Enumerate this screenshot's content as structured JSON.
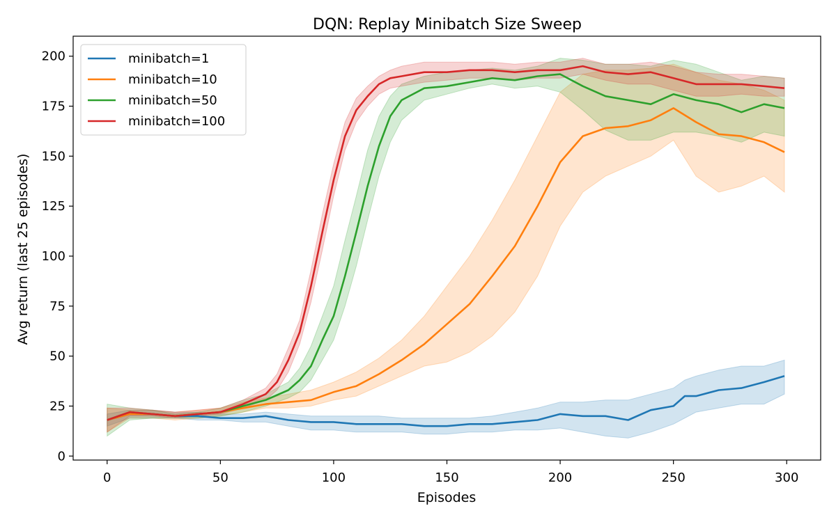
{
  "chart_data": {
    "type": "line",
    "title": "DQN: Replay Minibatch Size Sweep",
    "xlabel": "Episodes",
    "ylabel": "Avg return (last 25 episodes)",
    "xlim": [
      -15,
      315
    ],
    "ylim": [
      -2,
      210
    ],
    "xticks": [
      0,
      50,
      100,
      150,
      200,
      250,
      300
    ],
    "yticks": [
      0,
      25,
      50,
      75,
      100,
      125,
      150,
      175,
      200
    ],
    "grid": false,
    "legend_position": "top-left",
    "band": "shaded band around each mean line",
    "series": [
      {
        "name": "minibatch=1",
        "color": "#1f77b4",
        "x": [
          0,
          10,
          20,
          30,
          40,
          50,
          60,
          70,
          80,
          90,
          100,
          110,
          120,
          130,
          140,
          150,
          160,
          170,
          180,
          190,
          200,
          210,
          220,
          230,
          240,
          250,
          255,
          260,
          270,
          280,
          290,
          299
        ],
        "mean": [
          18,
          21,
          21,
          20,
          20,
          19,
          19,
          20,
          18,
          17,
          17,
          16,
          16,
          16,
          15,
          15,
          16,
          16,
          17,
          18,
          21,
          20,
          20,
          18,
          23,
          25,
          30,
          30,
          33,
          34,
          37,
          40
        ],
        "lower": [
          15,
          19,
          19,
          19,
          18,
          18,
          17,
          17,
          15,
          13,
          13,
          12,
          12,
          12,
          11,
          11,
          12,
          12,
          13,
          13,
          14,
          12,
          10,
          9,
          12,
          16,
          19,
          22,
          24,
          26,
          26,
          31
        ],
        "upper": [
          21,
          23,
          23,
          22,
          22,
          21,
          21,
          22,
          21,
          20,
          20,
          20,
          20,
          19,
          19,
          19,
          19,
          20,
          22,
          24,
          27,
          27,
          28,
          28,
          31,
          34,
          38,
          40,
          43,
          45,
          45,
          48
        ]
      },
      {
        "name": "minibatch=10",
        "color": "#ff7f0e",
        "x": [
          0,
          10,
          20,
          30,
          40,
          50,
          60,
          70,
          80,
          90,
          100,
          110,
          120,
          130,
          140,
          150,
          160,
          170,
          180,
          190,
          200,
          210,
          220,
          230,
          240,
          250,
          260,
          270,
          280,
          290,
          299
        ],
        "mean": [
          18,
          21,
          21,
          20,
          21,
          22,
          24,
          26,
          27,
          28,
          32,
          35,
          41,
          48,
          56,
          66,
          76,
          90,
          105,
          125,
          147,
          160,
          164,
          165,
          168,
          174,
          167,
          161,
          160,
          157,
          152
        ],
        "lower": [
          12,
          19,
          19,
          18,
          19,
          20,
          22,
          24,
          24,
          25,
          28,
          30,
          35,
          40,
          45,
          47,
          52,
          60,
          72,
          90,
          115,
          132,
          140,
          145,
          150,
          158,
          140,
          132,
          135,
          140,
          132
        ],
        "upper": [
          24,
          23,
          23,
          22,
          23,
          24,
          27,
          29,
          31,
          33,
          37,
          42,
          49,
          58,
          70,
          85,
          100,
          118,
          138,
          160,
          182,
          191,
          193,
          193,
          194,
          196,
          192,
          188,
          186,
          183,
          178
        ]
      },
      {
        "name": "minibatch=50",
        "color": "#2ca02c",
        "x": [
          0,
          10,
          20,
          30,
          40,
          50,
          60,
          70,
          80,
          85,
          90,
          95,
          100,
          105,
          110,
          115,
          120,
          125,
          130,
          140,
          150,
          160,
          170,
          180,
          190,
          200,
          210,
          220,
          230,
          240,
          250,
          260,
          270,
          280,
          290,
          299
        ],
        "mean": [
          18,
          22,
          21,
          20,
          21,
          22,
          25,
          28,
          33,
          38,
          45,
          58,
          70,
          90,
          112,
          135,
          155,
          170,
          178,
          184,
          185,
          187,
          189,
          188,
          190,
          191,
          185,
          180,
          178,
          176,
          181,
          178,
          176,
          172,
          176,
          174
        ],
        "lower": [
          10,
          18,
          19,
          19,
          19,
          20,
          22,
          25,
          29,
          32,
          38,
          48,
          58,
          75,
          95,
          118,
          140,
          157,
          168,
          178,
          181,
          184,
          186,
          184,
          185,
          182,
          173,
          163,
          158,
          158,
          162,
          162,
          160,
          157,
          162,
          160
        ],
        "upper": [
          26,
          24,
          23,
          21,
          22,
          24,
          28,
          31,
          37,
          44,
          55,
          70,
          85,
          108,
          130,
          153,
          170,
          180,
          186,
          190,
          192,
          193,
          194,
          193,
          195,
          199,
          198,
          196,
          196,
          195,
          198,
          196,
          192,
          188,
          190,
          189
        ]
      },
      {
        "name": "minibatch=100",
        "color": "#d62728",
        "x": [
          0,
          10,
          20,
          30,
          40,
          50,
          60,
          70,
          75,
          80,
          85,
          90,
          95,
          100,
          105,
          110,
          115,
          120,
          125,
          130,
          140,
          150,
          160,
          170,
          180,
          190,
          200,
          210,
          220,
          230,
          240,
          250,
          260,
          270,
          280,
          290,
          299
        ],
        "mean": [
          18,
          22,
          21,
          20,
          21,
          22,
          26,
          31,
          37,
          48,
          62,
          85,
          112,
          138,
          160,
          173,
          180,
          186,
          189,
          190,
          192,
          192,
          193,
          193,
          192,
          193,
          193,
          195,
          192,
          191,
          192,
          189,
          186,
          186,
          186,
          185,
          184
        ],
        "lower": [
          12,
          20,
          20,
          19,
          20,
          21,
          24,
          28,
          33,
          42,
          56,
          77,
          103,
          130,
          153,
          167,
          175,
          181,
          184,
          185,
          187,
          188,
          189,
          189,
          188,
          189,
          189,
          191,
          188,
          186,
          186,
          183,
          180,
          180,
          181,
          180,
          180
        ],
        "upper": [
          24,
          24,
          23,
          22,
          23,
          24,
          28,
          34,
          41,
          54,
          68,
          93,
          121,
          146,
          167,
          179,
          185,
          190,
          193,
          195,
          197,
          197,
          197,
          197,
          196,
          197,
          197,
          199,
          196,
          196,
          197,
          195,
          192,
          191,
          191,
          190,
          189
        ]
      }
    ]
  }
}
